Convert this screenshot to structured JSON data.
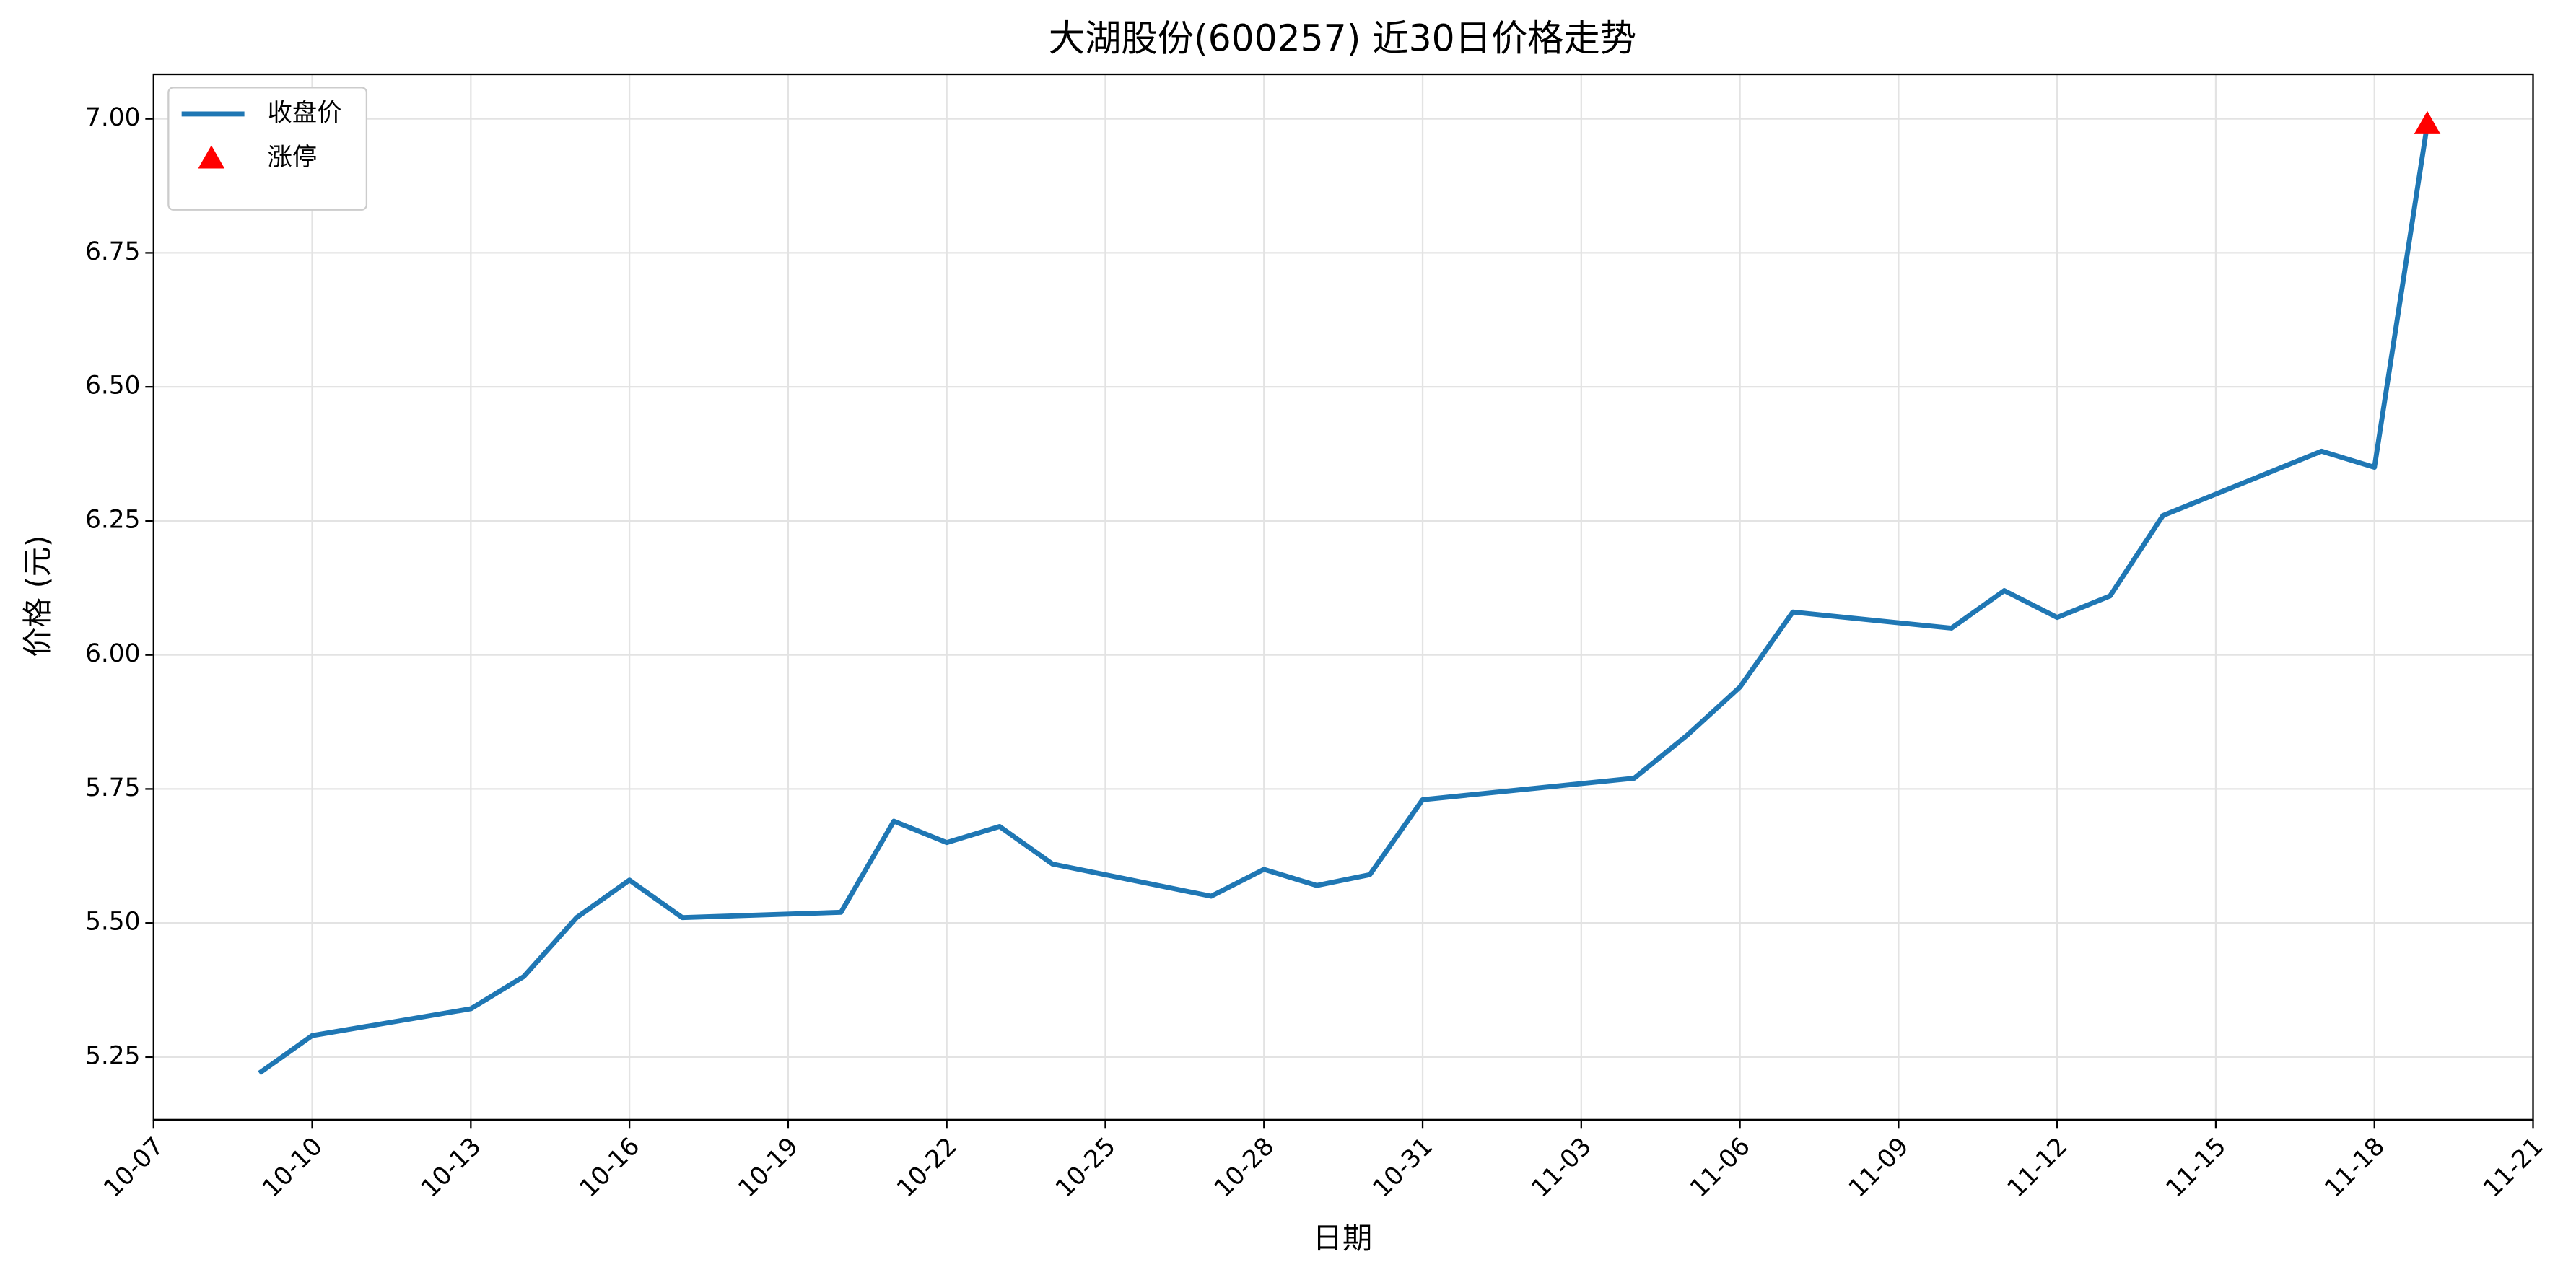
{
  "chart_data": {
    "type": "line",
    "title": "大湖股份(600257) 近30日价格走势",
    "xlabel": "日期",
    "ylabel": "价格 (元)",
    "series": [
      {
        "name": "收盘价",
        "type": "line",
        "color": "#1f77b4",
        "x": [
          "10-09",
          "10-10",
          "10-13",
          "10-14",
          "10-15",
          "10-16",
          "10-17",
          "10-20",
          "10-21",
          "10-22",
          "10-23",
          "10-24",
          "10-27",
          "10-28",
          "10-29",
          "10-30",
          "10-31",
          "11-04",
          "11-05",
          "11-06",
          "11-07",
          "11-10",
          "11-11",
          "11-12",
          "11-13",
          "11-14",
          "11-17",
          "11-18",
          "11-19"
        ],
        "values": [
          5.22,
          5.29,
          5.34,
          5.4,
          5.51,
          5.58,
          5.51,
          5.52,
          5.69,
          5.65,
          5.68,
          5.61,
          5.55,
          5.6,
          5.57,
          5.59,
          5.73,
          5.77,
          5.85,
          5.94,
          6.08,
          6.05,
          6.12,
          6.07,
          6.11,
          6.26,
          6.38,
          6.35,
          6.99
        ]
      },
      {
        "name": "涨停",
        "type": "scatter",
        "marker": "triangle",
        "color": "#ff0000",
        "x": [
          "11-19"
        ],
        "values": [
          6.99
        ]
      }
    ],
    "xlim": [
      "10-07",
      "11-21"
    ],
    "xticks": [
      "10-07",
      "10-10",
      "10-13",
      "10-16",
      "10-19",
      "10-22",
      "10-25",
      "10-28",
      "10-31",
      "11-03",
      "11-06",
      "11-09",
      "11-12",
      "11-15",
      "11-18",
      "11-21"
    ],
    "ylim": [
      5.133,
      7.083
    ],
    "yticks": [
      5.25,
      {
        "value": 5.5,
        "label": "5.50"
      },
      5.75,
      {
        "value": 6,
        "label": "6.00"
      },
      6.25,
      {
        "value": 6.5,
        "label": "6.50"
      },
      6.75,
      {
        "value": 7,
        "label": "7.00"
      }
    ],
    "grid": true,
    "legend": "upper left"
  }
}
